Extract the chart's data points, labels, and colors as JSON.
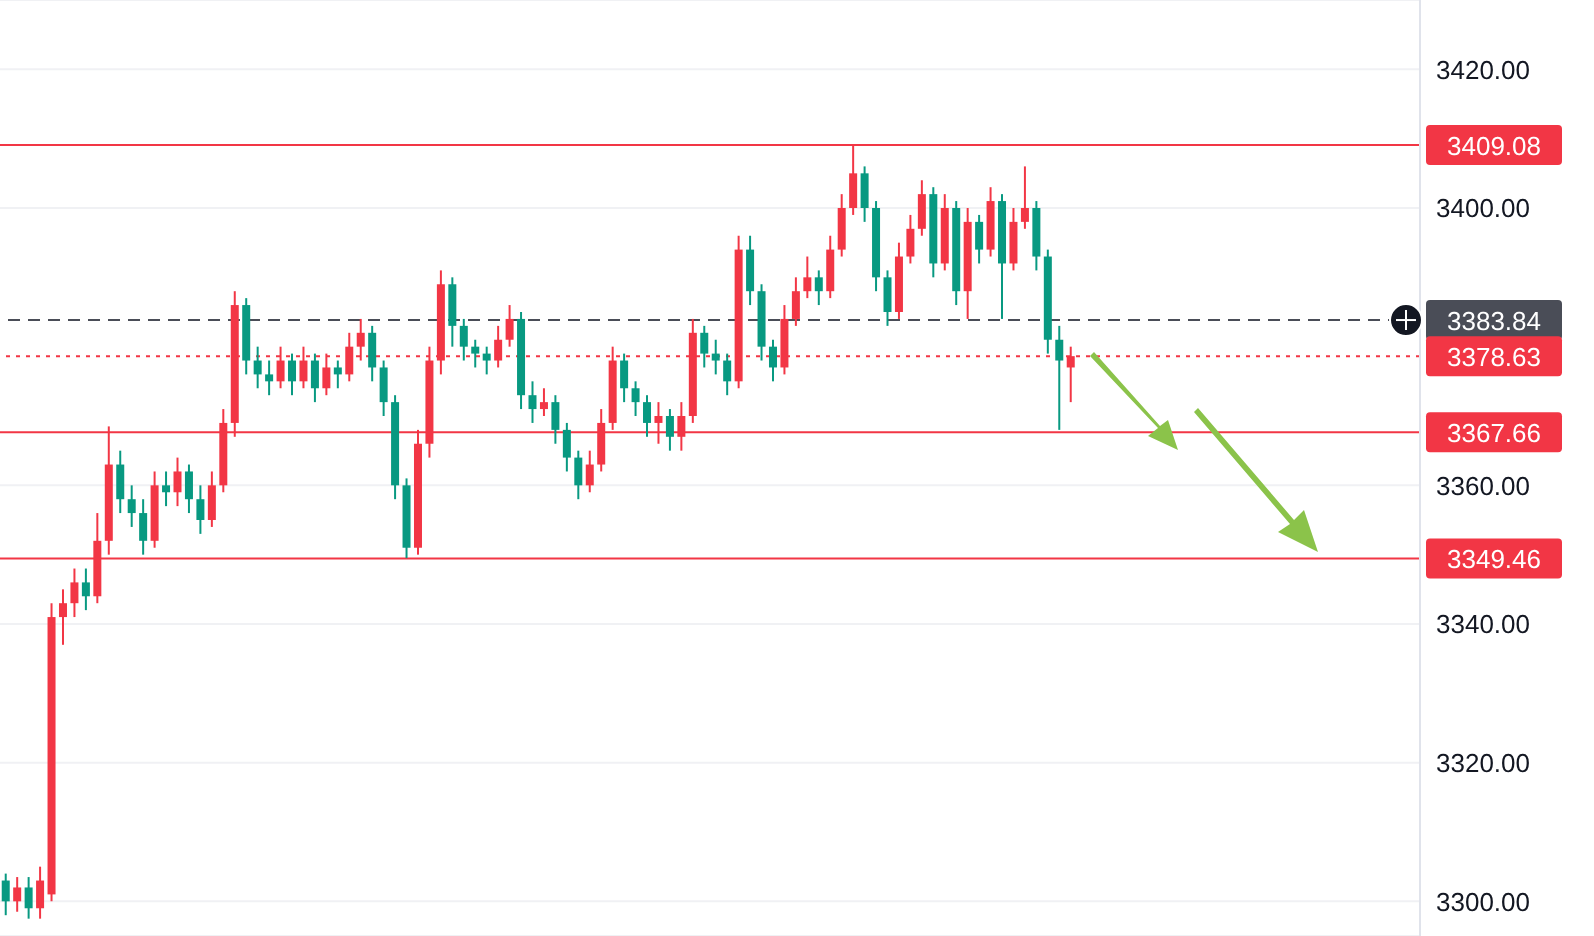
{
  "chart_data": {
    "type": "candlestick",
    "categories": [
      null,
      null,
      null,
      null,
      null,
      null,
      null,
      null,
      null,
      null,
      null,
      null,
      null,
      null,
      null,
      null,
      null,
      null,
      null,
      null,
      null,
      null,
      null,
      null,
      null,
      null,
      null,
      null,
      null,
      null,
      null,
      null,
      null,
      null,
      null,
      null,
      null,
      null,
      null,
      null,
      null,
      null,
      null,
      null,
      null,
      null,
      null,
      null,
      null,
      null,
      null,
      null,
      null,
      null,
      null,
      null,
      null,
      null,
      null,
      null,
      null,
      null,
      null,
      null,
      null,
      null,
      null,
      null,
      null,
      null,
      null,
      null,
      null,
      null,
      null,
      null,
      null,
      null,
      null,
      null,
      null,
      null,
      null,
      null,
      null,
      null,
      null,
      null,
      null,
      null,
      null,
      null,
      null,
      null,
      null,
      null,
      null,
      null,
      null,
      null,
      null,
      null,
      null,
      null,
      null,
      null,
      null,
      null,
      null,
      null,
      null,
      null,
      null,
      null,
      null,
      null,
      null,
      null,
      null,
      null,
      null,
      null,
      null,
      null
    ],
    "ohlc": [
      [
        3303,
        3304,
        3298,
        3300
      ],
      [
        3300,
        3303.5,
        3298.5,
        3302
      ],
      [
        3302,
        3303.5,
        3297.5,
        3299
      ],
      [
        3299,
        3305,
        3297.5,
        3303
      ],
      [
        3301,
        3343,
        3300,
        3341
      ],
      [
        3341,
        3345,
        3337,
        3343
      ],
      [
        3343,
        3348,
        3341,
        3346
      ],
      [
        3346,
        3348,
        3342,
        3344
      ],
      [
        3344,
        3356,
        3343,
        3352
      ],
      [
        3352,
        3368.5,
        3350,
        3363
      ],
      [
        3363,
        3365,
        3356,
        3358
      ],
      [
        3358,
        3360,
        3354,
        3356
      ],
      [
        3356,
        3358,
        3350,
        3352
      ],
      [
        3352,
        3362,
        3351,
        3360
      ],
      [
        3360,
        3362,
        3357,
        3359
      ],
      [
        3359,
        3364,
        3357,
        3362
      ],
      [
        3362,
        3363,
        3356,
        3358
      ],
      [
        3358,
        3360,
        3353,
        3355
      ],
      [
        3355,
        3362,
        3354,
        3360
      ],
      [
        3360,
        3371,
        3359,
        3369
      ],
      [
        3369,
        3388,
        3367,
        3386
      ],
      [
        3386,
        3387,
        3376,
        3378
      ],
      [
        3378,
        3380,
        3374,
        3376
      ],
      [
        3376,
        3378,
        3373,
        3375
      ],
      [
        3375,
        3380,
        3374,
        3378
      ],
      [
        3378,
        3379,
        3373,
        3375
      ],
      [
        3375,
        3380,
        3374,
        3378
      ],
      [
        3378,
        3379,
        3372,
        3374
      ],
      [
        3374,
        3379,
        3373,
        3377
      ],
      [
        3377,
        3378,
        3374,
        3376
      ],
      [
        3376,
        3382,
        3375,
        3380
      ],
      [
        3380,
        3384,
        3378,
        3382
      ],
      [
        3382,
        3383,
        3375,
        3377
      ],
      [
        3377,
        3378,
        3370,
        3372
      ],
      [
        3372,
        3373,
        3358,
        3360
      ],
      [
        3360,
        3361,
        3349.5,
        3351
      ],
      [
        3351,
        3368,
        3350,
        3366
      ],
      [
        3366,
        3380,
        3364,
        3378
      ],
      [
        3378,
        3391,
        3376,
        3389
      ],
      [
        3389,
        3390,
        3380,
        3383
      ],
      [
        3383,
        3384,
        3378,
        3380
      ],
      [
        3380,
        3381,
        3377,
        3379
      ],
      [
        3379,
        3380,
        3376,
        3378
      ],
      [
        3378,
        3383,
        3377,
        3381
      ],
      [
        3381,
        3386,
        3380,
        3384
      ],
      [
        3384,
        3385,
        3371,
        3373
      ],
      [
        3373,
        3375,
        3369,
        3371
      ],
      [
        3371,
        3374,
        3370,
        3372
      ],
      [
        3372,
        3373,
        3366,
        3368
      ],
      [
        3368,
        3369,
        3362,
        3364
      ],
      [
        3364,
        3365,
        3358,
        3360
      ],
      [
        3360,
        3365,
        3359,
        3363
      ],
      [
        3363,
        3371,
        3362,
        3369
      ],
      [
        3369,
        3380,
        3368,
        3378
      ],
      [
        3378,
        3379,
        3372,
        3374
      ],
      [
        3374,
        3375,
        3370,
        3372
      ],
      [
        3372,
        3373,
        3367,
        3369
      ],
      [
        3369,
        3372,
        3366,
        3370
      ],
      [
        3370,
        3371,
        3365,
        3367
      ],
      [
        3367,
        3372,
        3365,
        3370
      ],
      [
        3370,
        3384,
        3369,
        3382
      ],
      [
        3382,
        3383,
        3377,
        3379
      ],
      [
        3379,
        3381,
        3376,
        3378
      ],
      [
        3378,
        3379,
        3373,
        3375
      ],
      [
        3375,
        3396,
        3374,
        3394
      ],
      [
        3394,
        3396,
        3386,
        3388
      ],
      [
        3388,
        3389,
        3378,
        3380
      ],
      [
        3380,
        3381,
        3375,
        3377
      ],
      [
        3377,
        3386,
        3376,
        3384
      ],
      [
        3384,
        3390,
        3383,
        3388
      ],
      [
        3388,
        3393,
        3387,
        3390
      ],
      [
        3390,
        3391,
        3386,
        3388
      ],
      [
        3388,
        3396,
        3387,
        3394
      ],
      [
        3394,
        3402,
        3393,
        3400
      ],
      [
        3400,
        3409,
        3399,
        3405
      ],
      [
        3405,
        3406,
        3398,
        3400
      ],
      [
        3400,
        3401,
        3388,
        3390
      ],
      [
        3390,
        3391,
        3383,
        3385
      ],
      [
        3385,
        3395,
        3384,
        3393
      ],
      [
        3393,
        3399,
        3392,
        3397
      ],
      [
        3397,
        3404,
        3396,
        3402
      ],
      [
        3402,
        3403,
        3390,
        3392
      ],
      [
        3392,
        3402,
        3391,
        3400
      ],
      [
        3400,
        3401,
        3386,
        3388
      ],
      [
        3388,
        3400,
        3384,
        3398
      ],
      [
        3398,
        3399,
        3392,
        3394
      ],
      [
        3394,
        3403,
        3393,
        3401
      ],
      [
        3401,
        3402,
        3384,
        3392
      ],
      [
        3392,
        3400,
        3391,
        3398
      ],
      [
        3398,
        3406,
        3397,
        3400
      ],
      [
        3400,
        3401,
        3391,
        3393
      ],
      [
        3393,
        3394,
        3379,
        3381
      ],
      [
        3381,
        3383,
        3368,
        3378
      ],
      [
        3377,
        3380,
        3372,
        3378.63
      ],
      null,
      null,
      null,
      null,
      null,
      null,
      null,
      null,
      null,
      null,
      null,
      null,
      null,
      null,
      null,
      null,
      null,
      null,
      null,
      null,
      null,
      null,
      null,
      null,
      null,
      null,
      null,
      null,
      null,
      null
    ],
    "colors": [
      "#089981",
      "#f23645",
      "#089981",
      "#f23645",
      "#f23645",
      "#f23645",
      "#f23645",
      "#089981",
      "#f23645",
      "#f23645",
      "#089981",
      "#089981",
      "#089981",
      "#f23645",
      "#089981",
      "#f23645",
      "#089981",
      "#089981",
      "#f23645",
      "#f23645",
      "#f23645",
      "#089981",
      "#089981",
      "#089981",
      "#f23645",
      "#089981",
      "#f23645",
      "#089981",
      "#f23645",
      "#089981",
      "#f23645",
      "#f23645",
      "#089981",
      "#089981",
      "#089981",
      "#089981",
      "#f23645",
      "#f23645",
      "#f23645",
      "#089981",
      "#089981",
      "#089981",
      "#089981",
      "#f23645",
      "#f23645",
      "#089981",
      "#089981",
      "#f23645",
      "#089981",
      "#089981",
      "#089981",
      "#f23645",
      "#f23645",
      "#f23645",
      "#089981",
      "#089981",
      "#089981",
      "#f23645",
      "#089981",
      "#f23645",
      "#f23645",
      "#089981",
      "#089981",
      "#089981",
      "#f23645",
      "#089981",
      "#089981",
      "#089981",
      "#f23645",
      "#f23645",
      "#f23645",
      "#089981",
      "#f23645",
      "#f23645",
      "#f23645",
      "#089981",
      "#089981",
      "#089981",
      "#f23645",
      "#f23645",
      "#f23645",
      "#089981",
      "#f23645",
      "#089981",
      "#f23645",
      "#089981",
      "#f23645",
      "#089981",
      "#f23645",
      "#f23645",
      "#089981",
      "#089981",
      "#089981",
      "#f23645",
      null,
      null,
      null,
      null,
      null,
      null,
      null,
      null,
      null,
      null,
      null,
      null,
      null,
      null,
      null,
      null,
      null,
      null,
      null,
      null,
      null,
      null,
      null,
      null,
      null,
      null,
      null,
      null,
      null,
      null
    ],
    "ylim": [
      3295,
      3430
    ],
    "yticks": [
      {
        "value": 3300,
        "label": "3300.00"
      },
      {
        "value": 3320,
        "label": "3320.00"
      },
      {
        "value": 3340,
        "label": "3340.00"
      },
      {
        "value": 3360,
        "label": "3360.00"
      },
      {
        "value": 3400,
        "label": "3400.00"
      },
      {
        "value": 3420,
        "label": "3420.00"
      }
    ],
    "grid": "y",
    "tick_labels": "y",
    "ref_lines": [
      {
        "axis": "y",
        "value": 3409.08,
        "label": "3409.08",
        "color": "#f23645",
        "line_style": "solid"
      },
      {
        "axis": "y",
        "value": 3383.84,
        "label": "3383.84",
        "color": "#4a4d57",
        "line_style": "dashed"
      },
      {
        "axis": "y",
        "value": 3378.63,
        "label": "3378.63",
        "color": "#f23645",
        "line_style": "dotted"
      },
      {
        "axis": "y",
        "value": 3367.66,
        "label": "3367.66",
        "color": "#f23645",
        "line_style": "solid"
      },
      {
        "axis": "y",
        "value": 3349.46,
        "label": "3349.46",
        "color": "#f23645",
        "line_style": "solid"
      }
    ]
  }
}
